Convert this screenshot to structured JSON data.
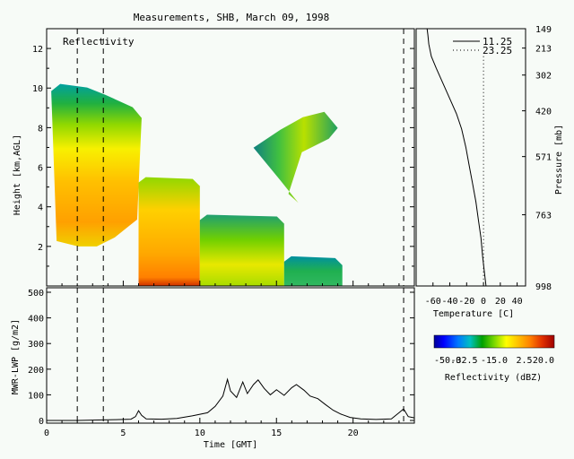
{
  "title": "Measurements, SHB, March 09, 1998",
  "panel_label": "Reflectivity",
  "colors": {
    "axis": "#000000",
    "background": "#f7fbf7",
    "colorbar_stops": [
      "#000096",
      "#0000ff",
      "#0078ff",
      "#00c0c0",
      "#00a000",
      "#78d800",
      "#ffff00",
      "#ffc000",
      "#ff8000",
      "#e03000",
      "#a00000"
    ]
  },
  "chart_data": [
    {
      "type": "heatmap",
      "name": "reflectivity",
      "xlabel": "",
      "ylabel": "Height [km,AGL]",
      "xlim": [
        0,
        24
      ],
      "ylim": [
        0,
        13
      ],
      "yticks": [
        "2",
        "4",
        "6",
        "8",
        "10",
        "12"
      ],
      "grid": false,
      "vertical_markers_hours": [
        2.0,
        3.7,
        23.3
      ],
      "echo_regions": [
        {
          "x": [
            0.3,
            6.2
          ],
          "y_top": 10.3,
          "y_bottom": 2.0,
          "core_dbz": 5
        },
        {
          "x": [
            6.0,
            10.0
          ],
          "y_top": 5.5,
          "y_bottom": 0.0,
          "core_dbz": 8
        },
        {
          "x": [
            10.0,
            15.5
          ],
          "y_top": 3.6,
          "y_bottom": 0.0,
          "core_dbz": 0
        },
        {
          "x": [
            15.5,
            19.3
          ],
          "y_top": 1.5,
          "y_bottom": 0.0,
          "core_dbz": -20
        },
        {
          "x": [
            13.5,
            19.0
          ],
          "y_top": 8.8,
          "y_bottom": 4.2,
          "core_dbz": -15
        }
      ]
    },
    {
      "type": "line",
      "name": "temperature-profile",
      "xlabel": "Temperature [C]",
      "ylabel": "Pressure [mb]",
      "xticks": [
        "-60",
        "-40",
        "-20",
        "0",
        "20",
        "40"
      ],
      "xlim": [
        -80,
        50
      ],
      "yticks": [
        "149",
        "213",
        "302",
        "420",
        "571",
        "763",
        "998"
      ],
      "legend_position": "top-right",
      "series": [
        {
          "name": "11.25",
          "style": "solid",
          "points": [
            [
              -67,
              149
            ],
            [
              -66,
              170
            ],
            [
              -65,
              200
            ],
            [
              -62,
              240
            ],
            [
              -56,
              280
            ],
            [
              -48,
              330
            ],
            [
              -40,
              380
            ],
            [
              -32,
              430
            ],
            [
              -26,
              480
            ],
            [
              -21,
              540
            ],
            [
              -17,
              600
            ],
            [
              -13,
              660
            ],
            [
              -9,
              720
            ],
            [
              -6,
              780
            ],
            [
              -3,
              840
            ],
            [
              -1,
              900
            ],
            [
              1,
              950
            ],
            [
              3,
              998
            ]
          ]
        },
        {
          "name": "23.25",
          "style": "dotted",
          "points": [
            [
              0,
              240
            ],
            [
              0,
              998
            ]
          ]
        }
      ]
    },
    {
      "type": "line",
      "name": "liquid-water-path",
      "xlabel": "Time [GMT]",
      "ylabel": "MWR-LWP [g/m2]",
      "xlim": [
        0,
        24
      ],
      "ylim": [
        0,
        500
      ],
      "xticks": [
        "0",
        "5",
        "10",
        "15",
        "20"
      ],
      "yticks": [
        "0",
        "100",
        "200",
        "300",
        "400",
        "500"
      ],
      "vertical_markers_hours": [
        2.0,
        3.7,
        23.3
      ],
      "series": [
        {
          "name": "",
          "points": [
            [
              0,
              0
            ],
            [
              2,
              0
            ],
            [
              3.7,
              2
            ],
            [
              4.5,
              3
            ],
            [
              5.5,
              5
            ],
            [
              5.8,
              15
            ],
            [
              6.0,
              38
            ],
            [
              6.2,
              20
            ],
            [
              6.5,
              6
            ],
            [
              7.5,
              5
            ],
            [
              8.5,
              8
            ],
            [
              9.5,
              18
            ],
            [
              10.5,
              30
            ],
            [
              11.0,
              55
            ],
            [
              11.5,
              95
            ],
            [
              11.8,
              160
            ],
            [
              12.0,
              115
            ],
            [
              12.4,
              90
            ],
            [
              12.8,
              150
            ],
            [
              13.1,
              105
            ],
            [
              13.5,
              140
            ],
            [
              13.8,
              158
            ],
            [
              14.2,
              125
            ],
            [
              14.6,
              100
            ],
            [
              15.0,
              120
            ],
            [
              15.5,
              98
            ],
            [
              16.0,
              128
            ],
            [
              16.3,
              140
            ],
            [
              16.8,
              118
            ],
            [
              17.2,
              95
            ],
            [
              17.7,
              85
            ],
            [
              18.2,
              62
            ],
            [
              18.7,
              40
            ],
            [
              19.2,
              25
            ],
            [
              19.8,
              12
            ],
            [
              20.5,
              6
            ],
            [
              21.5,
              4
            ],
            [
              22.5,
              6
            ],
            [
              23.0,
              30
            ],
            [
              23.3,
              45
            ],
            [
              23.6,
              15
            ],
            [
              24,
              10
            ]
          ]
        }
      ]
    },
    {
      "type": "heatmap",
      "name": "reflectivity-colorbar",
      "xlabel": "Reflectivity (dBZ)",
      "ticks": [
        "-50.0",
        "-32.5",
        "-15.0",
        "2.5",
        "20.0"
      ],
      "range": [
        -50,
        20
      ]
    }
  ]
}
